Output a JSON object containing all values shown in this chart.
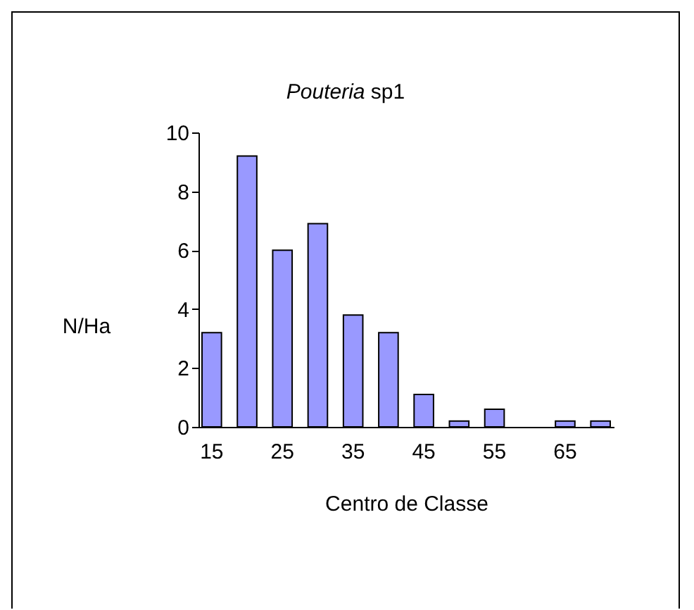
{
  "chart_data": {
    "type": "bar",
    "title": "Pouteria sp1",
    "xlabel": "Centro de Classe",
    "ylabel": "N/Ha",
    "categories": [
      "15",
      null,
      "25",
      null,
      "35",
      null,
      "45",
      null,
      "55",
      null,
      "65",
      null
    ],
    "values": [
      3.2,
      9.2,
      6.0,
      6.9,
      3.8,
      3.2,
      1.1,
      0.2,
      0.6,
      null,
      0.2,
      0.2
    ],
    "color": "#9999ff",
    "ylim": [
      0,
      10
    ],
    "yticks": [
      0,
      2,
      4,
      6,
      8,
      10
    ],
    "grid": false
  }
}
